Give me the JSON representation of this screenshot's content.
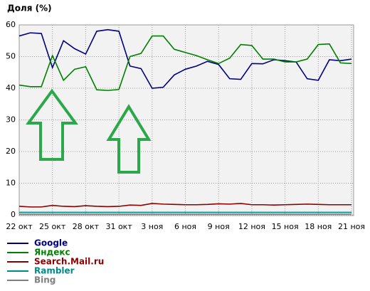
{
  "chart_data": {
    "type": "line",
    "title": "Доля (%)",
    "categories": [
      "22 окт",
      null,
      null,
      "25 окт",
      null,
      null,
      "28 окт",
      null,
      null,
      "31 окт",
      null,
      null,
      "3 ноя",
      null,
      null,
      "6 ноя",
      null,
      null,
      "9 ноя",
      null,
      null,
      "12 ноя",
      null,
      null,
      "15 ноя",
      null,
      null,
      "18 ноя",
      null,
      null,
      "21 ноя"
    ],
    "series": [
      {
        "name": "Google",
        "color": "#000080",
        "values": [
          56.5,
          57.5,
          57.3,
          46.5,
          55,
          52.5,
          50.8,
          58,
          58.5,
          58,
          47,
          46.2,
          40,
          40.3,
          44.2,
          46,
          47,
          48.5,
          47.5,
          43,
          42.8,
          47.8,
          47.7,
          49,
          48.7,
          48.3,
          43,
          42.5,
          49,
          48.7,
          49.2
        ]
      },
      {
        "name": "Яндекс",
        "color": "#008000",
        "values": [
          41,
          40.5,
          40.5,
          50.3,
          42.5,
          46,
          46.8,
          39.5,
          39.3,
          39.6,
          50,
          51,
          56.5,
          56.5,
          52.3,
          51.3,
          50.3,
          49,
          47.8,
          49.5,
          53.8,
          53.5,
          49.2,
          49.2,
          48.3,
          48.3,
          49.2,
          53.8,
          54,
          48,
          47.8
        ]
      },
      {
        "name": "Search.Mail.ru",
        "color": "#8b0000",
        "values": [
          2.7,
          2.5,
          2.5,
          3,
          2.7,
          2.6,
          2.9,
          2.7,
          2.6,
          2.7,
          3.1,
          3,
          3.6,
          3.4,
          3.3,
          3.2,
          3.2,
          3.3,
          3.5,
          3.4,
          3.6,
          3.2,
          3.2,
          3.1,
          3.2,
          3.3,
          3.4,
          3.3,
          3.2,
          3.2,
          3.2
        ]
      },
      {
        "name": "Rambler",
        "color": "#008b8b",
        "values": [
          0.8,
          0.8,
          0.8,
          0.8,
          0.8,
          0.8,
          0.8,
          0.8,
          0.8,
          0.8,
          0.8,
          0.8,
          0.8,
          0.8,
          0.8,
          0.8,
          0.8,
          0.8,
          0.8,
          0.8,
          0.8,
          0.8,
          0.8,
          0.8,
          0.8,
          0.8,
          0.8,
          0.8,
          0.8,
          0.8,
          0.8
        ]
      },
      {
        "name": "Bing",
        "color": "#808080",
        "values": [
          0.2,
          0.2,
          0.2,
          0.2,
          0.2,
          0.2,
          0.2,
          0.2,
          0.2,
          0.2,
          0.2,
          0.2,
          0.2,
          0.2,
          0.2,
          0.2,
          0.2,
          0.2,
          0.2,
          0.2,
          0.2,
          0.2,
          0.2,
          0.2,
          0.2,
          0.2,
          0.2,
          0.2,
          0.2,
          0.2,
          0.2
        ]
      }
    ],
    "ylim": [
      0,
      60
    ],
    "yticks": [
      0,
      10,
      20,
      30,
      40,
      50,
      60
    ],
    "grid": true
  }
}
